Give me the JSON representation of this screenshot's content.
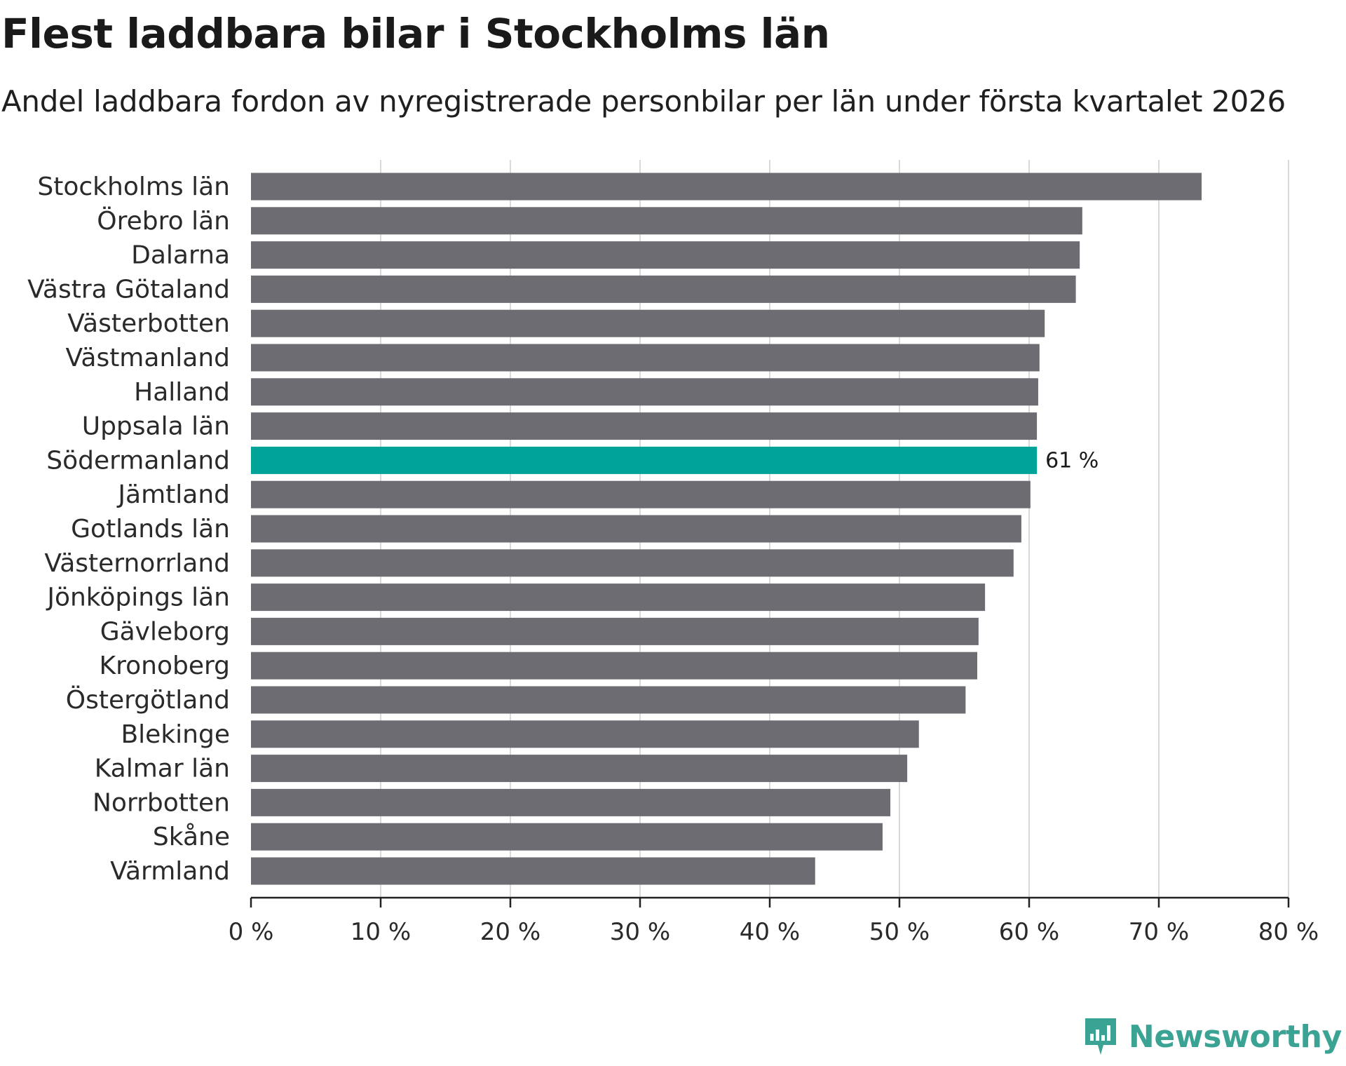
{
  "title": "Flest laddbara bilar i Stockholms län",
  "subtitle": "Andel laddbara fordon av nyregistrerade personbilar per län under första kvartalet 2026",
  "brand": "Newsworthy",
  "colors": {
    "bar": "#6d6c73",
    "highlight": "#00a398",
    "grid": "#d9d9d9",
    "axis": "#222222",
    "brand": "#3aa394"
  },
  "chart_data": {
    "type": "bar",
    "orientation": "horizontal",
    "categories": [
      "Stockholms län",
      "Örebro län",
      "Dalarna",
      "Västra Götaland",
      "Västerbotten",
      "Västmanland",
      "Halland",
      "Uppsala län",
      "Södermanland",
      "Jämtland",
      "Gotlands län",
      "Västernorrland",
      "Jönköpings län",
      "Gävleborg",
      "Kronoberg",
      "Östergötland",
      "Blekinge",
      "Kalmar län",
      "Norrbotten",
      "Skåne",
      "Värmland"
    ],
    "values": [
      73.3,
      64.1,
      63.9,
      63.6,
      61.2,
      60.8,
      60.7,
      60.6,
      60.6,
      60.1,
      59.4,
      58.8,
      56.6,
      56.1,
      56.0,
      55.1,
      51.5,
      50.6,
      49.3,
      48.7,
      43.5
    ],
    "highlight_index": 8,
    "highlight_label": "61 %",
    "xlim": [
      0,
      80
    ],
    "xticks": [
      0,
      10,
      20,
      30,
      40,
      50,
      60,
      70,
      80
    ],
    "xtick_labels": [
      "0 %",
      "10 %",
      "20 %",
      "30 %",
      "40 %",
      "50 %",
      "60 %",
      "70 %",
      "80 %"
    ],
    "xlabel": "",
    "ylabel": "",
    "grid": true
  }
}
